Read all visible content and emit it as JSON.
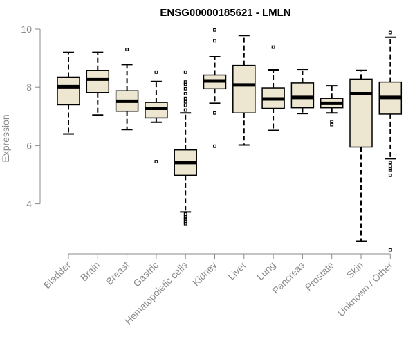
{
  "chart_data": {
    "type": "boxplot",
    "title": "ENSG00000185621 - LMLN",
    "xlabel": "",
    "ylabel": "Expression",
    "ylim": [
      2.2,
      10.2
    ],
    "yticks": [
      4,
      6,
      8,
      10
    ],
    "colors": {
      "box_fill": "#ede7d1",
      "stroke": "#000000",
      "axis": "#8a8a8a"
    },
    "categories": [
      "Bladder",
      "Brain",
      "Breast",
      "Gastric",
      "Hematopoietic cells",
      "Kidney",
      "Liver",
      "Lung",
      "Pancreas",
      "Prostate",
      "Skin",
      "Unknown / Other"
    ],
    "series": [
      {
        "name": "Bladder",
        "q1": 7.4,
        "median": 8.02,
        "q3": 8.35,
        "whisker_low": 6.4,
        "whisker_high": 9.2,
        "outliers": []
      },
      {
        "name": "Brain",
        "q1": 7.82,
        "median": 8.28,
        "q3": 8.58,
        "whisker_low": 7.05,
        "whisker_high": 9.2,
        "outliers": []
      },
      {
        "name": "Breast",
        "q1": 7.18,
        "median": 7.52,
        "q3": 7.88,
        "whisker_low": 6.55,
        "whisker_high": 8.78,
        "outliers": [
          9.3
        ]
      },
      {
        "name": "Gastric",
        "q1": 6.95,
        "median": 7.28,
        "q3": 7.48,
        "whisker_low": 6.8,
        "whisker_high": 8.2,
        "outliers": [
          8.52,
          5.45
        ]
      },
      {
        "name": "Hematopoietic cells",
        "q1": 4.98,
        "median": 5.42,
        "q3": 5.85,
        "whisker_low": 3.72,
        "whisker_high": 7.12,
        "outliers": [
          8.52,
          8.18,
          8.1,
          7.95,
          7.78,
          7.62,
          7.5,
          7.38,
          7.22,
          3.65,
          3.55,
          3.48,
          3.4,
          3.32
        ]
      },
      {
        "name": "Kidney",
        "q1": 7.95,
        "median": 8.22,
        "q3": 8.42,
        "whisker_low": 7.45,
        "whisker_high": 9.05,
        "outliers": [
          9.97,
          9.6,
          7.12,
          5.98
        ]
      },
      {
        "name": "Liver",
        "q1": 7.12,
        "median": 8.08,
        "q3": 8.75,
        "whisker_low": 6.02,
        "whisker_high": 9.78,
        "outliers": []
      },
      {
        "name": "Lung",
        "q1": 7.28,
        "median": 7.6,
        "q3": 7.98,
        "whisker_low": 6.52,
        "whisker_high": 8.6,
        "outliers": [
          9.38
        ]
      },
      {
        "name": "Pancreas",
        "q1": 7.3,
        "median": 7.65,
        "q3": 8.15,
        "whisker_low": 7.1,
        "whisker_high": 8.62,
        "outliers": []
      },
      {
        "name": "Prostate",
        "q1": 7.3,
        "median": 7.45,
        "q3": 7.62,
        "whisker_low": 7.12,
        "whisker_high": 8.05,
        "outliers": [
          6.82,
          6.72
        ]
      },
      {
        "name": "Skin",
        "q1": 5.95,
        "median": 7.78,
        "q3": 8.28,
        "whisker_low": 2.72,
        "whisker_high": 8.58,
        "outliers": []
      },
      {
        "name": "Unknown / Other",
        "q1": 7.08,
        "median": 7.65,
        "q3": 8.18,
        "whisker_low": 5.55,
        "whisker_high": 9.72,
        "outliers": [
          9.88,
          5.42,
          5.3,
          5.2,
          5.15,
          4.98,
          2.42
        ]
      }
    ]
  }
}
